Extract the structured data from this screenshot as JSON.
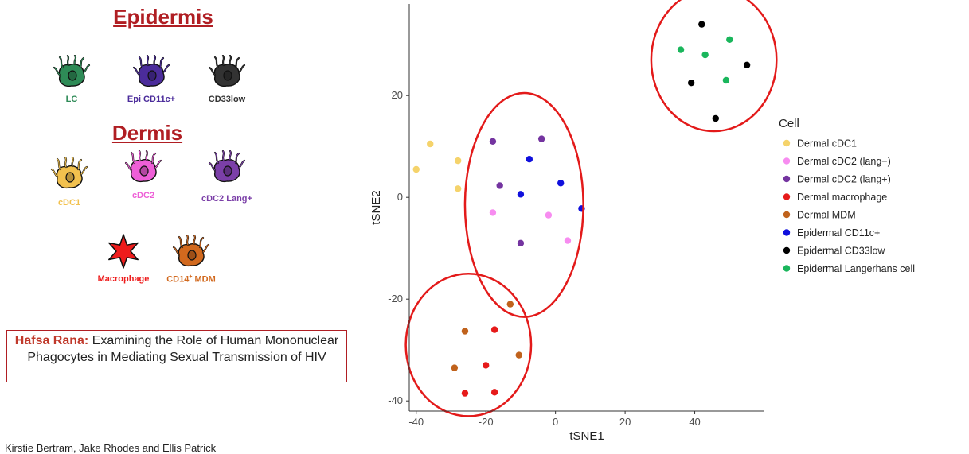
{
  "illustration": {
    "epidermis_heading": "Epidermis",
    "dermis_heading": "Dermis",
    "cells": [
      {
        "icon": "dendritic-cell-icon",
        "label": "LC",
        "color": "#2e8b57"
      },
      {
        "icon": "dendritic-cell-icon",
        "label": "Epi CD11c+",
        "color": "#4b2c9b"
      },
      {
        "icon": "dendritic-cell-icon",
        "label": "CD33low",
        "color": "#333333"
      },
      {
        "icon": "dendritic-cell-icon",
        "label": "cDC1",
        "color": "#f2c14e"
      },
      {
        "icon": "dendritic-cell-icon",
        "label": "cDC2",
        "color": "#ee5fd7"
      },
      {
        "icon": "dendritic-cell-icon",
        "label": "cDC2 Lang+",
        "color": "#7b3fa8"
      },
      {
        "icon": "macrophage-star-icon",
        "label": "Macrophage",
        "color": "#ee1c1c"
      },
      {
        "icon": "dendritic-cell-icon",
        "label": "CD14",
        "label_sup": "+",
        "label_suffix": " MDM",
        "color": "#d2691e"
      }
    ]
  },
  "caption": {
    "name": "Hafsa Rana:",
    "text": " Examining the Role of Human Mononuclear Phagocytes in Mediating Sexual Transmission of HIV"
  },
  "credit": "Kirstie Bertram, Jake Rhodes and Ellis Patrick",
  "chart_data": {
    "type": "scatter",
    "xlabel": "tSNE1",
    "ylabel": "tSNE2",
    "xlim": [
      -42,
      60
    ],
    "ylim": [
      -42,
      38
    ],
    "xticks": [
      -40,
      -20,
      0,
      20,
      40
    ],
    "yticks": [
      -40,
      -20,
      0,
      20
    ],
    "grid": false,
    "legend": {
      "title": "Cell",
      "placement": "right"
    },
    "series": [
      {
        "name": "Dermal cDC1",
        "color": "#f5d36b",
        "points": [
          [
            -36,
            10.5
          ],
          [
            -40,
            5.5
          ],
          [
            -28,
            7.2
          ],
          [
            -28,
            1.7
          ]
        ]
      },
      {
        "name": "Dermal cDC2 (lang−)",
        "color": "#f78cf0",
        "points": [
          [
            -18,
            -3
          ],
          [
            -2,
            -3.5
          ],
          [
            3.5,
            -8.5
          ]
        ]
      },
      {
        "name": "Dermal cDC2 (lang+)",
        "color": "#7434a0",
        "points": [
          [
            -18,
            11
          ],
          [
            -4,
            11.5
          ],
          [
            -16,
            2.3
          ],
          [
            -10,
            -9
          ]
        ]
      },
      {
        "name": "Dermal macrophage",
        "color": "#e61a1a",
        "points": [
          [
            -17.5,
            -26
          ],
          [
            -20,
            -33
          ],
          [
            -26,
            -38.5
          ],
          [
            -17.5,
            -38.3
          ]
        ]
      },
      {
        "name": "Dermal MDM",
        "color": "#c0621c",
        "points": [
          [
            -13,
            -21
          ],
          [
            -26,
            -26.3
          ],
          [
            -10.5,
            -31
          ],
          [
            -29,
            -33.5
          ]
        ]
      },
      {
        "name": "Epidermal CD11c+",
        "color": "#1010dd",
        "points": [
          [
            -7.5,
            7.5
          ],
          [
            -10,
            0.6
          ],
          [
            1.5,
            2.8
          ],
          [
            7.5,
            -2.2
          ]
        ]
      },
      {
        "name": "Epidermal CD33low",
        "color": "#000000",
        "points": [
          [
            42,
            34
          ],
          [
            55,
            26
          ],
          [
            39,
            22.5
          ],
          [
            46,
            15.5
          ]
        ]
      },
      {
        "name": "Epidermal Langerhans cell",
        "color": "#1ab65c",
        "points": [
          [
            36,
            29
          ],
          [
            50,
            31
          ],
          [
            43,
            28
          ],
          [
            49,
            23
          ]
        ]
      }
    ],
    "annotations": [
      {
        "shape": "ellipse",
        "color": "#e31a1a",
        "center": [
          -9,
          -1.5
        ],
        "radii": [
          17,
          22
        ]
      },
      {
        "shape": "ellipse",
        "color": "#e31a1a",
        "center": [
          -25,
          -29
        ],
        "radii": [
          18,
          14
        ]
      },
      {
        "shape": "ellipse",
        "color": "#e31a1a",
        "center": [
          45.5,
          27
        ],
        "radii": [
          18,
          14
        ]
      }
    ]
  }
}
